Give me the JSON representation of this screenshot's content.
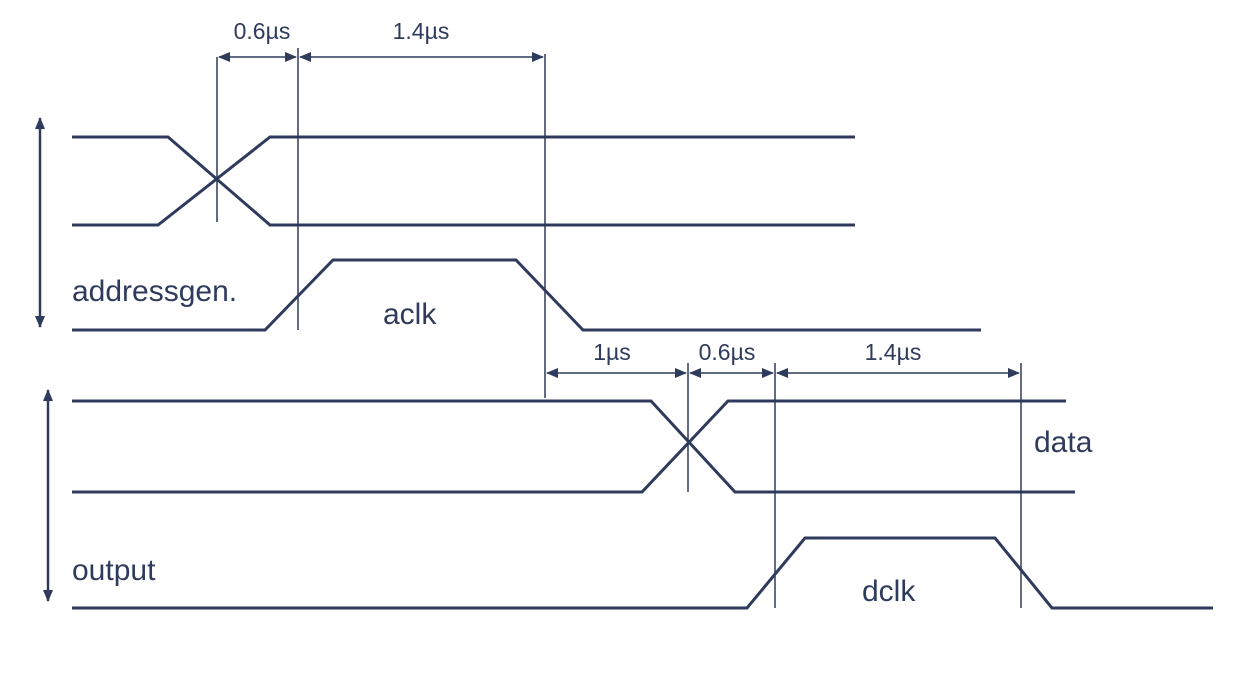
{
  "labels": {
    "address_gen": "addressgen.",
    "aclk": "aclk",
    "data": "data",
    "output": "output",
    "dclk": "dclk"
  },
  "timings": {
    "t1": "0.6µs",
    "t2": "1.4µs",
    "t3": "1µs",
    "t4": "0.6µs",
    "t5": "1.4µs"
  },
  "colors": {
    "ink": "#2f3b5c",
    "background": "#ffffff"
  }
}
